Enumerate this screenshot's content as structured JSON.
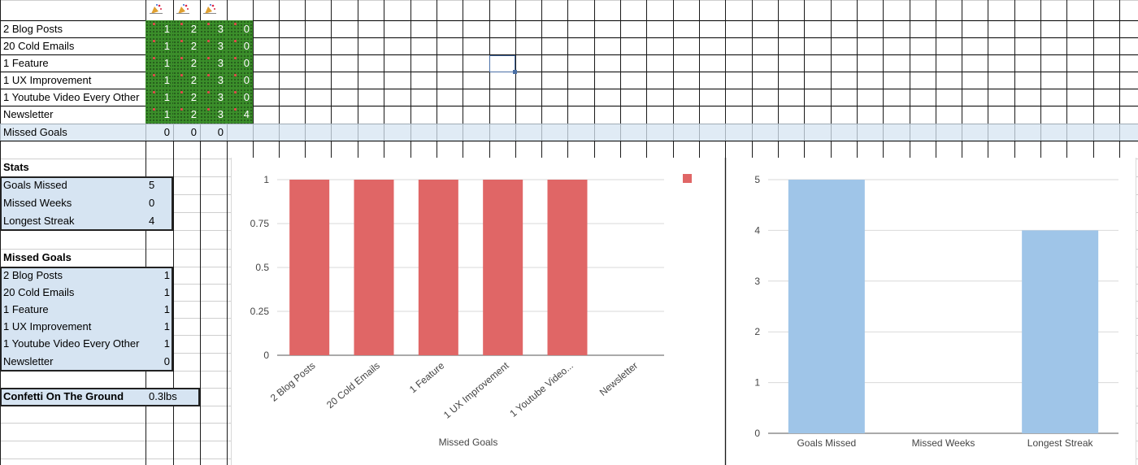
{
  "tracker": {
    "goals": [
      "2 Blog Posts",
      "20 Cold Emails",
      "1 Feature",
      "1 UX Improvement",
      "1 Youtube Video Every Other",
      "Newsletter"
    ],
    "week_columns": [
      [
        "1",
        "2",
        "3",
        "0"
      ],
      [
        "1",
        "2",
        "3",
        "0"
      ],
      [
        "1",
        "2",
        "3",
        "0"
      ],
      [
        "1",
        "2",
        "3",
        "0"
      ],
      [
        "1",
        "2",
        "3",
        "0"
      ],
      [
        "1",
        "2",
        "3",
        "4"
      ]
    ],
    "missed_row": {
      "label": "Missed Goals",
      "values": [
        "0",
        "0",
        "0"
      ]
    },
    "header_icon": "party-popper-icon"
  },
  "stats": {
    "title": "Stats",
    "rows": [
      {
        "label": "Goals Missed",
        "value": "5"
      },
      {
        "label": "Missed Weeks",
        "value": "0"
      },
      {
        "label": "Longest Streak",
        "value": "4"
      }
    ]
  },
  "missed_goals": {
    "title": "Missed Goals",
    "rows": [
      {
        "label": "2 Blog Posts",
        "value": "1"
      },
      {
        "label": "20 Cold Emails",
        "value": "1"
      },
      {
        "label": "1 Feature",
        "value": "1"
      },
      {
        "label": "1 UX Improvement",
        "value": "1"
      },
      {
        "label": "1 Youtube Video Every Other",
        "value": "1"
      },
      {
        "label": "Newsletter",
        "value": "0"
      }
    ]
  },
  "confetti": {
    "label": "Confetti On The Ground",
    "value": "0.3lbs"
  },
  "chart_data": [
    {
      "type": "bar",
      "categories": [
        "2 Blog Posts",
        "20 Cold Emails",
        "1 Feature",
        "1 UX Improvement",
        "1 Youtube Video...",
        "Newsletter"
      ],
      "values": [
        1,
        1,
        1,
        1,
        1,
        0
      ],
      "xlabel": "Missed Goals",
      "ylabel": "",
      "ylim": [
        0,
        1
      ],
      "yticks": [
        "0",
        "0.25",
        "0.5",
        "0.75",
        "1"
      ],
      "grid": true,
      "legend": "top-right",
      "color": "#e06666"
    },
    {
      "type": "bar",
      "categories": [
        "Goals Missed",
        "Missed Weeks",
        "Longest Streak"
      ],
      "values": [
        5,
        0,
        4
      ],
      "xlabel": "",
      "ylabel": "",
      "ylim": [
        0,
        5
      ],
      "yticks": [
        "0",
        "1",
        "2",
        "3",
        "4",
        "5"
      ],
      "grid": true,
      "color": "#9fc5e8"
    }
  ]
}
